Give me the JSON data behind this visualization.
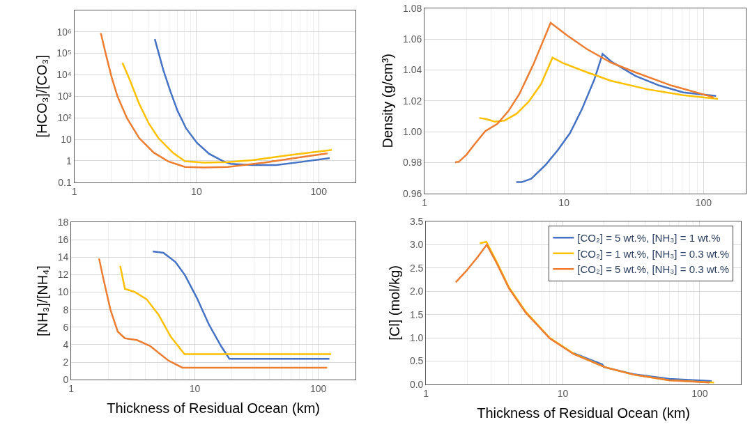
{
  "chart_data": [
    {
      "type": "line",
      "ylabel": "[HCO₃]/[CO₃]",
      "log": "xy",
      "grid": true,
      "xlim": [
        1,
        200
      ],
      "xticks": [
        1,
        10,
        100
      ],
      "ylim": [
        0.1,
        10000000
      ],
      "yticks": [
        0.1,
        1,
        10,
        {
          "value": 100,
          "label": "10²"
        },
        {
          "value": 1000,
          "label": "10³"
        },
        {
          "value": 10000,
          "label": "10⁴"
        },
        {
          "value": 100000,
          "label": "10⁵"
        },
        {
          "value": 1000000,
          "label": "10⁶"
        }
      ],
      "series": [
        {
          "color": "#4472c4",
          "x": [
            4.56,
            5.35,
            6.13,
            7.02,
            8.23,
            10.1,
            12.7,
            16.6,
            19,
            28.6,
            45,
            71,
            123
          ],
          "values": [
            460000,
            17000,
            1650,
            203,
            32,
            6.8,
            2.1,
            0.95,
            0.73,
            0.64,
            0.64,
            0.88,
            1.33
          ]
        },
        {
          "color": "#ffc000",
          "x": [
            2.48,
            2.84,
            3.4,
            4.07,
            4.88,
            6.41,
            8.05,
            11.6,
            18,
            28.6,
            56,
            128
          ],
          "values": [
            36000,
            6000,
            445,
            55,
            11.4,
            2.4,
            0.95,
            0.83,
            0.88,
            1.08,
            1.8,
            3.2
          ]
        },
        {
          "color": "#ed7d31",
          "x": [
            1.65,
            1.8,
            2.02,
            2.26,
            2.71,
            3.4,
            4.47,
            5.86,
            8.05,
            11.6,
            18,
            35.9,
            71,
            118
          ],
          "values": [
            870000,
            107000,
            7900,
            980,
            93,
            11.4,
            2.4,
            0.95,
            0.52,
            0.49,
            0.52,
            0.83,
            1.48,
            2.2
          ]
        }
      ]
    },
    {
      "type": "line",
      "ylabel": "Density (g/cm³)",
      "log": "x",
      "grid": true,
      "xlim": [
        1,
        200
      ],
      "xticks": [
        1,
        10,
        100
      ],
      "ylim": [
        0.96,
        1.08
      ],
      "yticks": [
        {
          "value": 0.96,
          "label": "0.96"
        },
        {
          "value": 0.98,
          "label": "0.98"
        },
        {
          "value": 1.0,
          "label": "1.00"
        },
        {
          "value": 1.02,
          "label": "1.02"
        },
        {
          "value": 1.04,
          "label": "1.04"
        },
        {
          "value": 1.06,
          "label": "1.06"
        },
        {
          "value": 1.08,
          "label": "1.08"
        }
      ],
      "series": [
        {
          "color": "#4472c4",
          "x": [
            4.55,
            4.97,
            5.82,
            7.39,
            9.03,
            11.05,
            13.5,
            16.5,
            18.9,
            21.7,
            32.4,
            48.2,
            71.8,
            123
          ],
          "values": [
            0.9673,
            0.9673,
            0.9695,
            0.9786,
            0.9881,
            0.9991,
            1.0149,
            1.0338,
            1.0504,
            1.0456,
            1.0362,
            1.0299,
            1.0254,
            1.0232
          ]
        },
        {
          "color": "#ffc000",
          "x": [
            2.47,
            2.73,
            3.2,
            3.76,
            4.58,
            5.6,
            6.83,
            8.28,
            9.78,
            14.6,
            21.7,
            39.5,
            71.8,
            127
          ],
          "values": [
            1.0089,
            1.0083,
            1.0065,
            1.0073,
            1.0117,
            1.0196,
            1.0307,
            1.048,
            1.0445,
            1.0385,
            1.033,
            1.0275,
            1.0236,
            1.0212
          ]
        },
        {
          "color": "#ed7d31",
          "x": [
            1.66,
            1.76,
            1.99,
            2.33,
            2.73,
            3.33,
            3.99,
            4.78,
            6.07,
            8.02,
            10.6,
            14.6,
            21.7,
            32.4,
            58.9,
            118
          ],
          "values": [
            0.9802,
            0.9805,
            0.9849,
            0.9928,
            1.0004,
            1.0051,
            1.0133,
            1.0243,
            1.0441,
            1.0705,
            1.0622,
            1.0535,
            1.0448,
            1.0385,
            1.0299,
            1.0223
          ]
        }
      ]
    },
    {
      "type": "line",
      "xlabel": "Thickness of Residual Ocean (km)",
      "ylabel": "[NH₃]/[NH₄]",
      "log": "x",
      "grid": true,
      "xlim": [
        1,
        200
      ],
      "xticks": [
        1,
        10,
        100
      ],
      "ylim": [
        0,
        18
      ],
      "yticks": [
        0,
        2,
        4,
        6,
        8,
        10,
        12,
        14,
        16,
        18
      ],
      "series": [
        {
          "color": "#4472c4",
          "x": [
            4.57,
            5.57,
            6.96,
            8.33,
            10.4,
            13.0,
            16.3,
            19.05,
            123
          ],
          "values": [
            14.67,
            14.5,
            13.46,
            11.95,
            9.34,
            6.32,
            3.85,
            2.39,
            2.39
          ]
        },
        {
          "color": "#ffc000",
          "x": [
            2.49,
            2.72,
            3.26,
            4.07,
            5.09,
            6.37,
            8.26,
            127
          ],
          "values": [
            13.02,
            10.38,
            10.03,
            9.2,
            7.42,
            4.95,
            2.91,
            2.91
          ]
        },
        {
          "color": "#ed7d31",
          "x": [
            1.68,
            1.82,
            2.08,
            2.38,
            2.72,
            3.4,
            4.35,
            6.09,
            7.95,
            118
          ],
          "values": [
            13.85,
            11.54,
            7.97,
            5.49,
            4.73,
            4.53,
            3.85,
            2.2,
            1.37,
            1.37
          ]
        }
      ]
    },
    {
      "type": "line",
      "xlabel": "Thickness of Residual Ocean (km)",
      "ylabel": "[Cl] (mol/kg)",
      "log": "x",
      "grid": true,
      "legend": "top right",
      "xlim": [
        1,
        200
      ],
      "xticks": [
        1,
        10,
        100
      ],
      "ylim": [
        0,
        3.5
      ],
      "yticks": [
        {
          "value": 0,
          "label": "0.0"
        },
        0.5,
        {
          "value": 1,
          "label": "1.0"
        },
        1.5,
        {
          "value": 2,
          "label": "2.0"
        },
        2.5,
        {
          "value": 3,
          "label": "3.0"
        },
        3.5
      ],
      "series": [
        {
          "name": "[CO₂] = 5 wt.%, [NH₃] = 1 wt.%",
          "color": "#4472c4",
          "x": [
            12,
            19.4,
            20,
            32.7,
            59.7,
            122
          ],
          "values": [
            0.67,
            0.43,
            0.37,
            0.22,
            0.12,
            0.07
          ]
        },
        {
          "name": "[CO₂] = 1 wt.%, [NH₃] = 0.3 wt.%",
          "color": "#ffc000",
          "x": [
            2.47,
            2.76,
            3.3,
            4.04,
            5.35,
            8.0,
            12,
            20.2,
            32.7,
            59.7,
            127
          ],
          "values": [
            3.03,
            3.06,
            2.62,
            2.08,
            1.56,
            1.0,
            0.66,
            0.37,
            0.21,
            0.09,
            0.04
          ]
        },
        {
          "name": "[CO₂] = 5 wt.%, [NH₃] = 0.3 wt.%",
          "color": "#ed7d31",
          "x": [
            1.65,
            1.96,
            2.39,
            2.78,
            3.3,
            4.04,
            5.35,
            8.0,
            12,
            20.2,
            32.7,
            59.7,
            118
          ],
          "values": [
            2.19,
            2.43,
            2.74,
            3.0,
            2.59,
            2.06,
            1.54,
            0.99,
            0.65,
            0.37,
            0.21,
            0.09,
            0.04
          ]
        }
      ]
    }
  ]
}
